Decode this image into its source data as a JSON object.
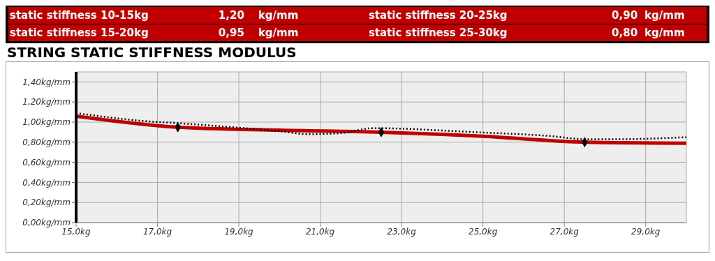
{
  "chart_data": {
    "type": "line",
    "title": "STRING STATIC STIFFNESS MODULUS",
    "annotations": [
      "static stiffness 10-15kg",
      "1,20",
      "kg/mm",
      "static stiffness 20-25kg",
      "0,90",
      "kg/mm",
      "static stiffness 15-20kg",
      "0,95",
      "kg/mm",
      "static stiffness 25-30kg",
      "0,80",
      "kg/mm"
    ],
    "series": [
      {
        "color": "#c00000",
        "line_style": "solid",
        "marker": "none",
        "x": [
          15,
          17.5,
          20,
          22.5,
          25,
          27.5,
          30
        ],
        "values": [
          1.06,
          0.95,
          0.92,
          0.9,
          0.86,
          0.8,
          0.79
        ]
      },
      {
        "color": "#000000",
        "line_style": "dotted",
        "marker": "none",
        "x": [
          15,
          16.7,
          17.5,
          18.5,
          20,
          20.7,
          21.5,
          22.3,
          24.8,
          26.7,
          27.5,
          28.3,
          30
        ],
        "values": [
          1.09,
          1.01,
          0.99,
          0.96,
          0.91,
          0.88,
          0.89,
          0.94,
          0.9,
          0.86,
          0.83,
          0.83,
          0.85
        ]
      },
      {
        "type": "scatter",
        "color": "#000000",
        "marker": "diamond",
        "x": [
          17.5,
          22.5,
          27.5
        ],
        "values": [
          0.95,
          0.9,
          0.8
        ]
      }
    ],
    "xlim": [
      15,
      30
    ],
    "xticks": [
      {
        "value": 15,
        "label": "15,0kg"
      },
      {
        "value": 17,
        "label": "17,0kg"
      },
      {
        "value": 19,
        "label": "19,0kg"
      },
      {
        "value": 21,
        "label": "21,0kg"
      },
      {
        "value": 23,
        "label": "23,0kg"
      },
      {
        "value": 25,
        "label": "25,0kg"
      },
      {
        "value": 27,
        "label": "27,0kg"
      },
      {
        "value": 29,
        "label": "29,0kg"
      }
    ],
    "ylim": [
      0,
      1.5
    ],
    "yticks": [
      {
        "value": 0,
        "label": "0,00kg/mm"
      },
      {
        "value": 0.2,
        "label": "0,20kg/mm"
      },
      {
        "value": 0.4,
        "label": "0,40kg/mm"
      },
      {
        "value": 0.6,
        "label": "0,60kg/mm"
      },
      {
        "value": 0.8,
        "label": "0,80kg/mm"
      },
      {
        "value": 1,
        "label": "1,00kg/mm"
      },
      {
        "value": 1.2,
        "label": "1,20kg/mm"
      },
      {
        "value": 1.4,
        "label": "1,40kg/mm"
      }
    ],
    "grid": true,
    "legend": false
  }
}
